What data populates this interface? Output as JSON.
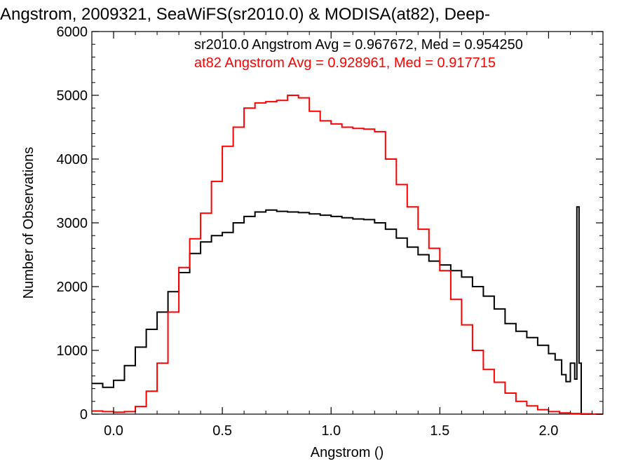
{
  "chart_data": {
    "type": "line",
    "step": true,
    "title": "Angstrom, 2009321, SeaWiFS(sr2010.0) & MODISA(at82), Deep-",
    "xlabel": "Angstrom ()",
    "ylabel": "Number of Observations",
    "xlim": [
      -0.1,
      2.25
    ],
    "ylim": [
      0,
      6000
    ],
    "x_ticks": [
      0.0,
      0.5,
      1.0,
      1.5,
      2.0
    ],
    "x_tick_labels": [
      "0.0",
      "0.5",
      "1.0",
      "1.5",
      "2.0"
    ],
    "y_ticks": [
      0,
      1000,
      2000,
      3000,
      4000,
      5000,
      6000
    ],
    "y_tick_labels": [
      "0",
      "1000",
      "2000",
      "3000",
      "4000",
      "5000",
      "6000"
    ],
    "annotations": [
      {
        "text": "sr2010.0 Angstrom Avg = 0.967672, Med = 0.954250",
        "color": "#000000"
      },
      {
        "text": "at82 Angstrom Avg = 0.928961, Med = 0.917715",
        "color": "#ff0000"
      }
    ],
    "series": [
      {
        "color": "#000000",
        "x": [
          -0.1,
          -0.05,
          0.0,
          0.05,
          0.1,
          0.15,
          0.2,
          0.25,
          0.3,
          0.35,
          0.4,
          0.45,
          0.5,
          0.55,
          0.6,
          0.65,
          0.7,
          0.75,
          0.8,
          0.85,
          0.9,
          0.95,
          1.0,
          1.05,
          1.1,
          1.15,
          1.2,
          1.25,
          1.3,
          1.35,
          1.4,
          1.45,
          1.5,
          1.55,
          1.6,
          1.65,
          1.7,
          1.75,
          1.8,
          1.85,
          1.9,
          1.95,
          2.0,
          2.03,
          2.06,
          2.08,
          2.1,
          2.12,
          2.13,
          2.14,
          2.15,
          2.25
        ],
        "values": [
          480,
          420,
          530,
          760,
          1050,
          1330,
          1600,
          1920,
          2220,
          2520,
          2700,
          2800,
          2850,
          3000,
          3100,
          3170,
          3200,
          3180,
          3170,
          3160,
          3140,
          3120,
          3100,
          3080,
          3060,
          3050,
          3000,
          2900,
          2760,
          2620,
          2500,
          2400,
          2340,
          2250,
          2150,
          2000,
          1850,
          1650,
          1420,
          1300,
          1200,
          1080,
          950,
          850,
          620,
          510,
          800,
          550,
          3250,
          800,
          0,
          0
        ]
      },
      {
        "color": "#ff0000",
        "x": [
          -0.1,
          -0.05,
          0.0,
          0.05,
          0.1,
          0.15,
          0.2,
          0.25,
          0.3,
          0.35,
          0.4,
          0.45,
          0.5,
          0.55,
          0.6,
          0.65,
          0.7,
          0.75,
          0.8,
          0.85,
          0.9,
          0.95,
          1.0,
          1.05,
          1.1,
          1.15,
          1.2,
          1.25,
          1.3,
          1.35,
          1.4,
          1.45,
          1.5,
          1.55,
          1.6,
          1.65,
          1.7,
          1.75,
          1.8,
          1.85,
          1.9,
          1.95,
          2.0,
          2.05,
          2.1,
          2.15,
          2.2,
          2.25
        ],
        "values": [
          50,
          40,
          30,
          40,
          120,
          360,
          800,
          1600,
          2300,
          2750,
          3150,
          3650,
          4200,
          4500,
          4800,
          4880,
          4900,
          4920,
          5000,
          4960,
          4750,
          4600,
          4550,
          4500,
          4480,
          4470,
          4430,
          4000,
          3600,
          3250,
          2900,
          2600,
          2250,
          1800,
          1400,
          1000,
          700,
          500,
          330,
          200,
          130,
          70,
          40,
          20,
          10,
          5,
          0,
          0
        ]
      }
    ]
  }
}
